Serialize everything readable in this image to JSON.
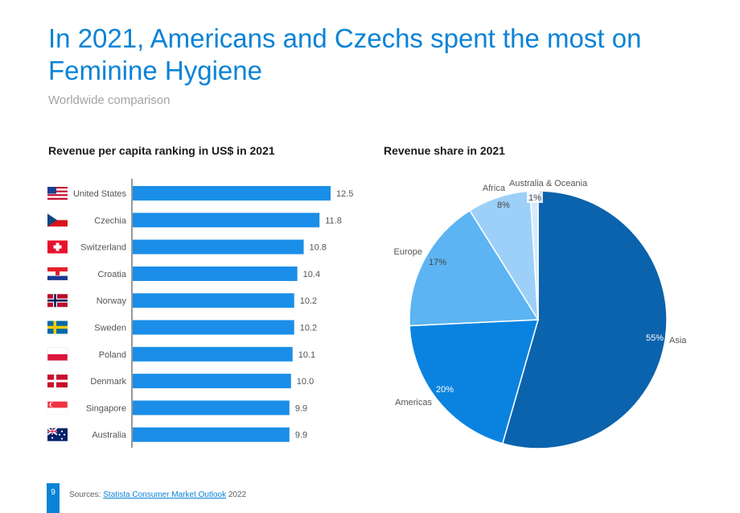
{
  "header": {
    "title": "In 2021, Americans and Czechs spent the most on Feminine Hygiene",
    "subtitle": "Worldwide comparison"
  },
  "footer": {
    "page_number": "9",
    "sources_label": "Sources:",
    "sources_link": "Statista Consumer Market Outlook",
    "sources_year": "2022"
  },
  "colors": {
    "accent": "#0a83d6",
    "bar": "#1a8ee8"
  },
  "chart_data": [
    {
      "type": "bar",
      "orientation": "horizontal",
      "title": "Revenue per capita ranking in US$ in 2021",
      "categories": [
        "United States",
        "Czechia",
        "Switzerland",
        "Croatia",
        "Norway",
        "Sweden",
        "Poland",
        "Denmark",
        "Singapore",
        "Australia"
      ],
      "values": [
        12.5,
        11.8,
        10.8,
        10.4,
        10.2,
        10.2,
        10.1,
        10.0,
        9.9,
        9.9
      ],
      "value_labels": [
        "12.5",
        "11.8",
        "10.8",
        "10.4",
        "10.2",
        "10.2",
        "10.1",
        "10.0",
        "9.9",
        "9.9"
      ],
      "flags": [
        "us-flag-icon",
        "cz-flag-icon",
        "ch-flag-icon",
        "hr-flag-icon",
        "no-flag-icon",
        "se-flag-icon",
        "pl-flag-icon",
        "dk-flag-icon",
        "sg-flag-icon",
        "au-flag-icon"
      ],
      "xlim": [
        0,
        12.5
      ]
    },
    {
      "type": "pie",
      "title": "Revenue share in 2021",
      "labels": [
        "Asia",
        "Americas",
        "Europe",
        "Africa",
        "Australia & Oceania"
      ],
      "values": [
        55,
        20,
        17,
        8,
        1
      ],
      "value_labels": [
        "55%",
        "20%",
        "17%",
        "8%",
        "1%"
      ],
      "colors": [
        "#0b63ad",
        "#0a83e0",
        "#5cb4f2",
        "#9dd0f8",
        "#d6ebfb"
      ]
    }
  ]
}
